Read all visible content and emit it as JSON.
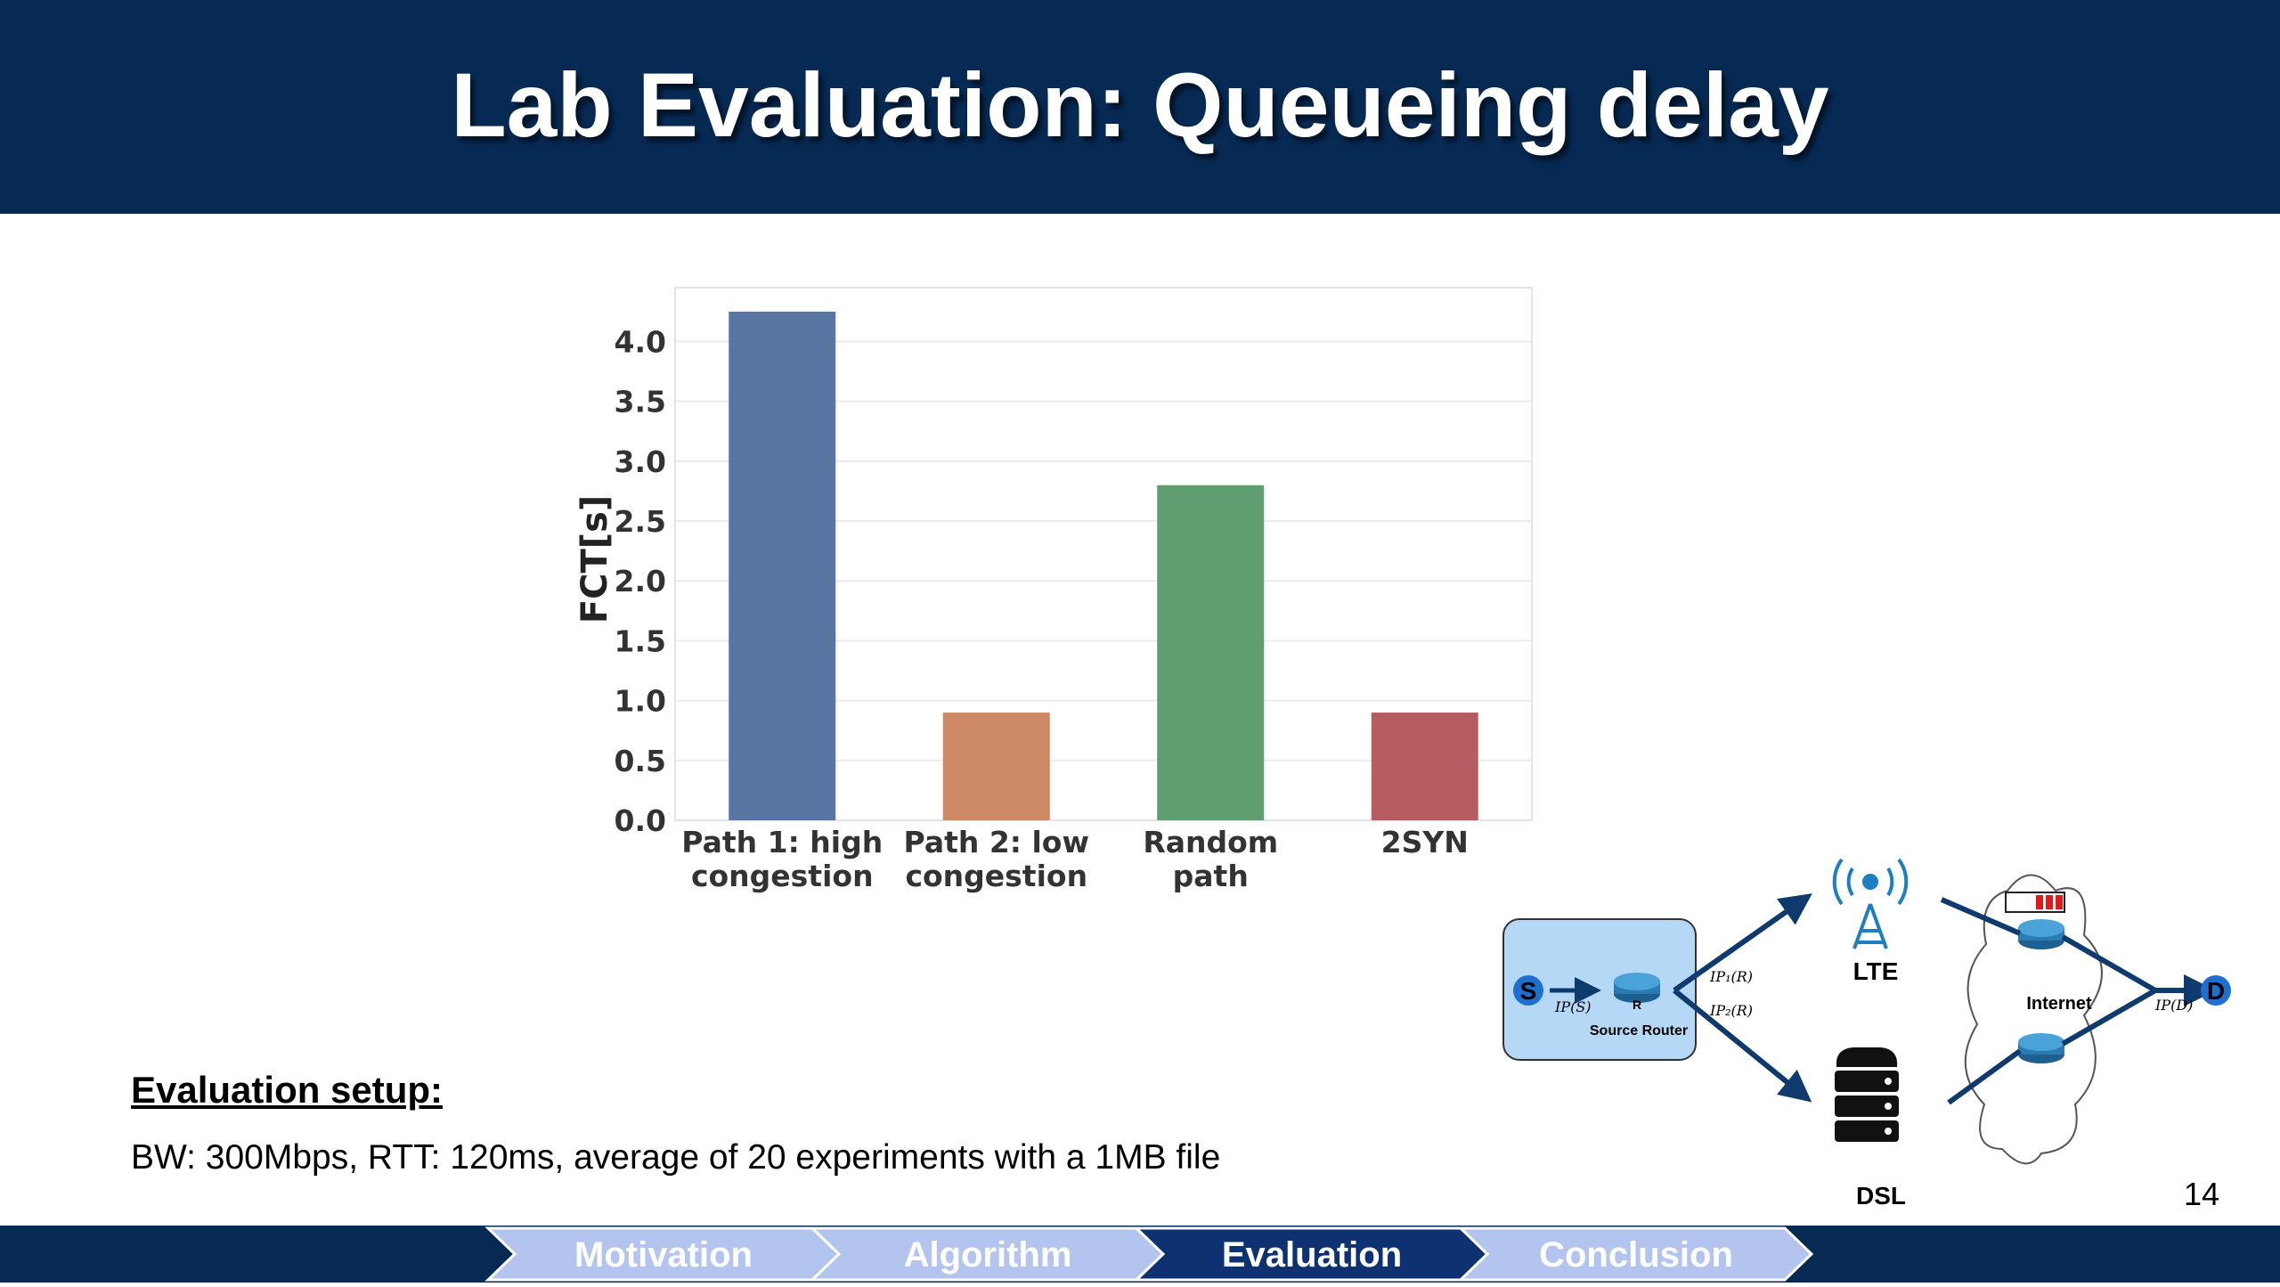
{
  "slide": {
    "title": "Lab Evaluation: Queueing delay",
    "page_number": "14"
  },
  "setup": {
    "heading": "Evaluation setup:",
    "text": "BW: 300Mbps, RTT: 120ms,  average of 20 experiments with a 1MB file"
  },
  "nav": {
    "items": [
      {
        "label": "Motivation",
        "active": false
      },
      {
        "label": "Algorithm",
        "active": false
      },
      {
        "label": "Evaluation",
        "active": true
      },
      {
        "label": "Conclusion",
        "active": false
      }
    ],
    "colors": {
      "inactive": "#b3c4ee",
      "active": "#0e3172",
      "bar": "#072a55"
    }
  },
  "chart_data": {
    "type": "bar",
    "categories": [
      [
        "Path 1: high",
        "congestion"
      ],
      [
        "Path 2: low",
        "congestion"
      ],
      [
        "Random",
        "path"
      ],
      [
        "2SYN"
      ]
    ],
    "values": [
      4.25,
      0.9,
      2.8,
      0.9
    ],
    "colors": [
      "#5875a4",
      "#cc8963",
      "#5f9e6e",
      "#b55d60"
    ],
    "ylabel": "FCT[s]",
    "yticks": [
      "0.0",
      "0.5",
      "1.0",
      "1.5",
      "2.0",
      "2.5",
      "3.0",
      "3.5",
      "4.0"
    ],
    "ylim": [
      0,
      4.45
    ],
    "grid": true
  },
  "diagram": {
    "source_label": "S",
    "dest_label": "D",
    "router_label": "R",
    "router_caption": "Source Router",
    "ip_source": "IP(S)",
    "ip_path1": "IP₁(R)",
    "ip_path2": "IP₂(R)",
    "ip_dest": "IP(D)",
    "lte_label": "LTE",
    "dsl_label": "DSL",
    "internet_label": "Internet"
  }
}
